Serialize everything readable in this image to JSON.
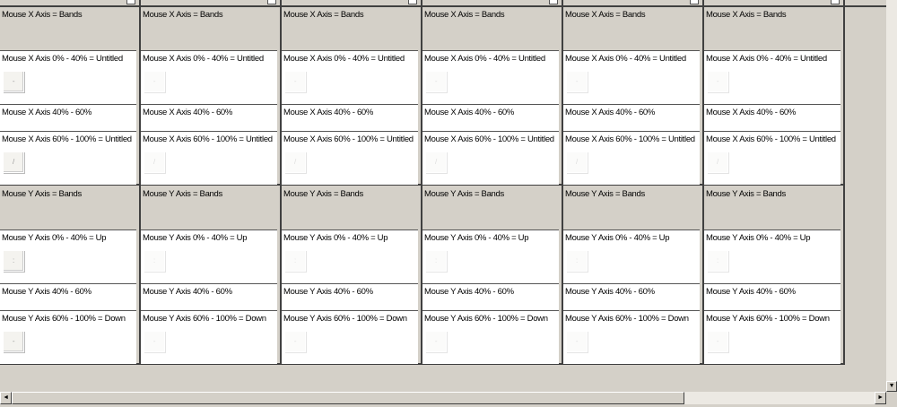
{
  "columns_count": 6,
  "sections": [
    {
      "header": "Mouse X Axis = Bands",
      "rows": [
        {
          "label": "Mouse X Axis 0% - 40% = Untitled",
          "key_glyph": "-"
        },
        {
          "label": "Mouse X Axis 40% - 60%"
        },
        {
          "label": "Mouse X Axis 60% - 100% = Untitled",
          "key_glyph": "/"
        }
      ]
    },
    {
      "header": "Mouse Y Axis = Bands",
      "rows": [
        {
          "label": "Mouse Y Axis 0% - 40% = Up",
          "key_glyph": ":"
        },
        {
          "label": "Mouse Y Axis 40% - 60%"
        },
        {
          "label": "Mouse Y Axis 60% - 100% = Down",
          "key_glyph": "-"
        }
      ]
    }
  ],
  "scrollbars": {
    "left_arrow": "◄",
    "right_arrow": "►",
    "down_arrow": "▼"
  }
}
